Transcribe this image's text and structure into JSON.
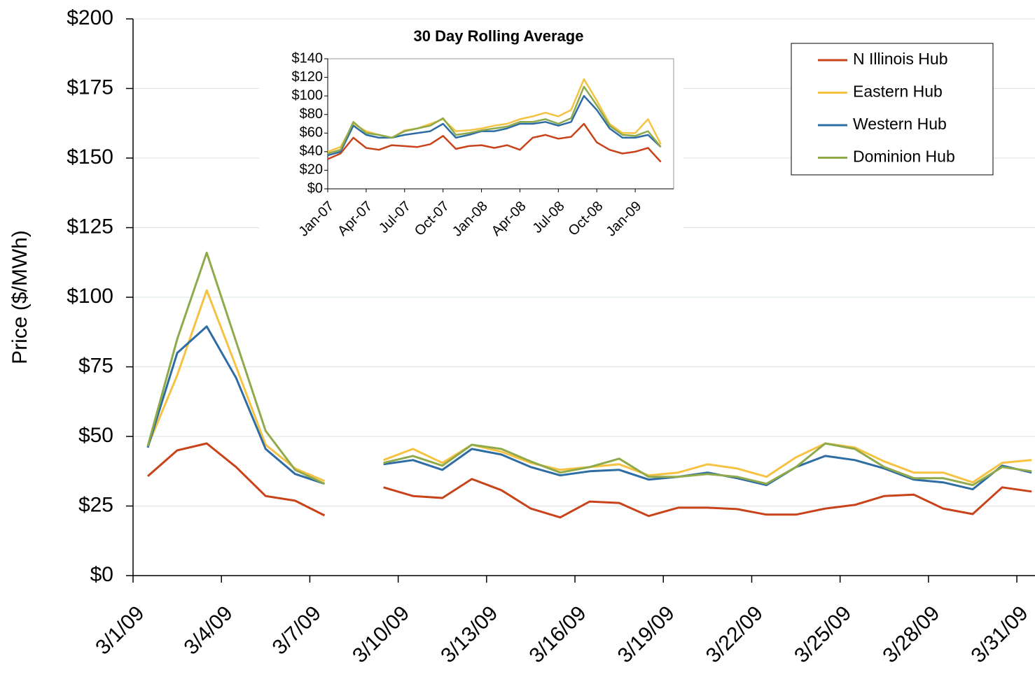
{
  "chart_data": [
    {
      "type": "line",
      "y_label": "Price ($/MWh)",
      "x": [
        "3/1/09",
        "3/2/09",
        "3/3/09",
        "3/4/09",
        "3/5/09",
        "3/6/09",
        "3/7/09",
        "3/8/09",
        "3/9/09",
        "3/10/09",
        "3/11/09",
        "3/12/09",
        "3/13/09",
        "3/14/09",
        "3/15/09",
        "3/16/09",
        "3/17/09",
        "3/18/09",
        "3/19/09",
        "3/20/09",
        "3/21/09",
        "3/22/09",
        "3/23/09",
        "3/24/09",
        "3/25/09",
        "3/26/09",
        "3/27/09",
        "3/28/09",
        "3/29/09",
        "3/30/09",
        "3/31/09"
      ],
      "xticks": [
        "3/1/09",
        "3/4/09",
        "3/7/09",
        "3/10/09",
        "3/13/09",
        "3/16/09",
        "3/19/09",
        "3/22/09",
        "3/25/09",
        "3/28/09",
        "3/31/09"
      ],
      "ylim": [
        0,
        200
      ],
      "yticks": [
        {
          "value": 0,
          "label": "$0"
        },
        {
          "value": 25,
          "label": "$25"
        },
        {
          "value": 50,
          "label": "$50"
        },
        {
          "value": 75,
          "label": "$75"
        },
        {
          "value": 100,
          "label": "$100"
        },
        {
          "value": 125,
          "label": "$125"
        },
        {
          "value": 150,
          "label": "$150"
        },
        {
          "value": 175,
          "label": "$175"
        },
        {
          "value": 200,
          "label": "$200"
        }
      ],
      "grid": true,
      "legend": "top-right",
      "series": [
        {
          "name": "N Illinois Hub",
          "color": "#c8431a",
          "values": [
            35.7,
            45,
            47.5,
            39,
            28.6,
            26.9,
            21.6,
            null,
            31.7,
            28.6,
            27.9,
            34.7,
            30.7,
            24.1,
            20.9,
            26.6,
            26.1,
            21.4,
            24.4,
            24.4,
            23.9,
            21.9,
            21.9,
            24.1,
            25.4,
            28.6,
            29.1,
            24.1,
            22.1,
            31.7,
            30.2
          ]
        },
        {
          "name": "Eastern Hub",
          "color": "#f5c242",
          "values": [
            46.5,
            72,
            102.5,
            75,
            47,
            38.5,
            34,
            null,
            41.5,
            45.5,
            40.5,
            47,
            44.5,
            40.5,
            38,
            39,
            40,
            36,
            37,
            40,
            38.5,
            35.5,
            42.5,
            47.5,
            46,
            41,
            37,
            37,
            33.5,
            40.5,
            41.5
          ]
        },
        {
          "name": "Western Hub",
          "color": "#2e6ca4",
          "values": [
            46,
            80,
            89.5,
            71,
            45.5,
            36.5,
            33,
            null,
            40,
            41.5,
            38,
            45.5,
            43.5,
            39,
            36,
            37.5,
            38,
            34.5,
            35.5,
            37,
            35,
            32.5,
            39,
            43,
            41.5,
            38.5,
            34.5,
            33.5,
            31,
            39.5,
            37
          ]
        },
        {
          "name": "Dominion Hub",
          "color": "#8faa4a",
          "values": [
            46.5,
            85,
            116,
            84,
            52,
            38,
            33,
            null,
            40.5,
            43,
            39.5,
            47,
            45.5,
            41,
            37,
            39,
            42,
            35.5,
            35.5,
            36.5,
            35.5,
            33,
            39,
            47.5,
            45.5,
            39,
            35,
            35,
            32.5,
            39,
            37.5
          ]
        }
      ]
    },
    {
      "type": "line",
      "title": "30 Day Rolling Average",
      "x": [
        "Jan-07",
        "Feb-07",
        "Mar-07",
        "Apr-07",
        "May-07",
        "Jun-07",
        "Jul-07",
        "Aug-07",
        "Sep-07",
        "Oct-07",
        "Nov-07",
        "Dec-07",
        "Jan-08",
        "Feb-08",
        "Mar-08",
        "Apr-08",
        "May-08",
        "Jun-08",
        "Jul-08",
        "Aug-08",
        "Sep-08",
        "Oct-08",
        "Nov-08",
        "Dec-08",
        "Jan-09",
        "Feb-09",
        "Mar-09"
      ],
      "xlim": [
        "Jan-07",
        "Apr-09"
      ],
      "xticks": [
        "Jan-07",
        "Apr-07",
        "Jul-07",
        "Oct-07",
        "Jan-08",
        "Apr-08",
        "Jul-08",
        "Oct-08",
        "Jan-09"
      ],
      "ylim": [
        0,
        140
      ],
      "yticks": [
        {
          "value": 0,
          "label": "$0"
        },
        {
          "value": 20,
          "label": "$20"
        },
        {
          "value": 40,
          "label": "$40"
        },
        {
          "value": 60,
          "label": "$60"
        },
        {
          "value": 80,
          "label": "$80"
        },
        {
          "value": 100,
          "label": "$100"
        },
        {
          "value": 120,
          "label": "$120"
        },
        {
          "value": 140,
          "label": "$140"
        }
      ],
      "series": [
        {
          "color": "#c8431a",
          "values": [
            32,
            38,
            55,
            44,
            42,
            47,
            46,
            45,
            48,
            57,
            43,
            46,
            47,
            44,
            47,
            42,
            55,
            58,
            54,
            56,
            70,
            50,
            42,
            38,
            40,
            44,
            29
          ]
        },
        {
          "color": "#f5c242",
          "values": [
            40,
            45,
            70,
            62,
            58,
            55,
            63,
            65,
            70,
            75,
            62,
            63,
            65,
            68,
            70,
            75,
            78,
            82,
            78,
            85,
            118,
            95,
            70,
            60,
            60,
            75,
            48
          ]
        },
        {
          "color": "#2e6ca4",
          "values": [
            36,
            40,
            68,
            58,
            55,
            55,
            58,
            60,
            62,
            70,
            55,
            58,
            62,
            62,
            65,
            70,
            70,
            72,
            68,
            72,
            100,
            85,
            65,
            55,
            55,
            58,
            45
          ]
        },
        {
          "color": "#8faa4a",
          "values": [
            38,
            42,
            72,
            60,
            58,
            55,
            62,
            65,
            68,
            76,
            58,
            60,
            63,
            65,
            67,
            72,
            72,
            75,
            70,
            76,
            110,
            90,
            68,
            58,
            57,
            62,
            45
          ]
        }
      ]
    }
  ]
}
